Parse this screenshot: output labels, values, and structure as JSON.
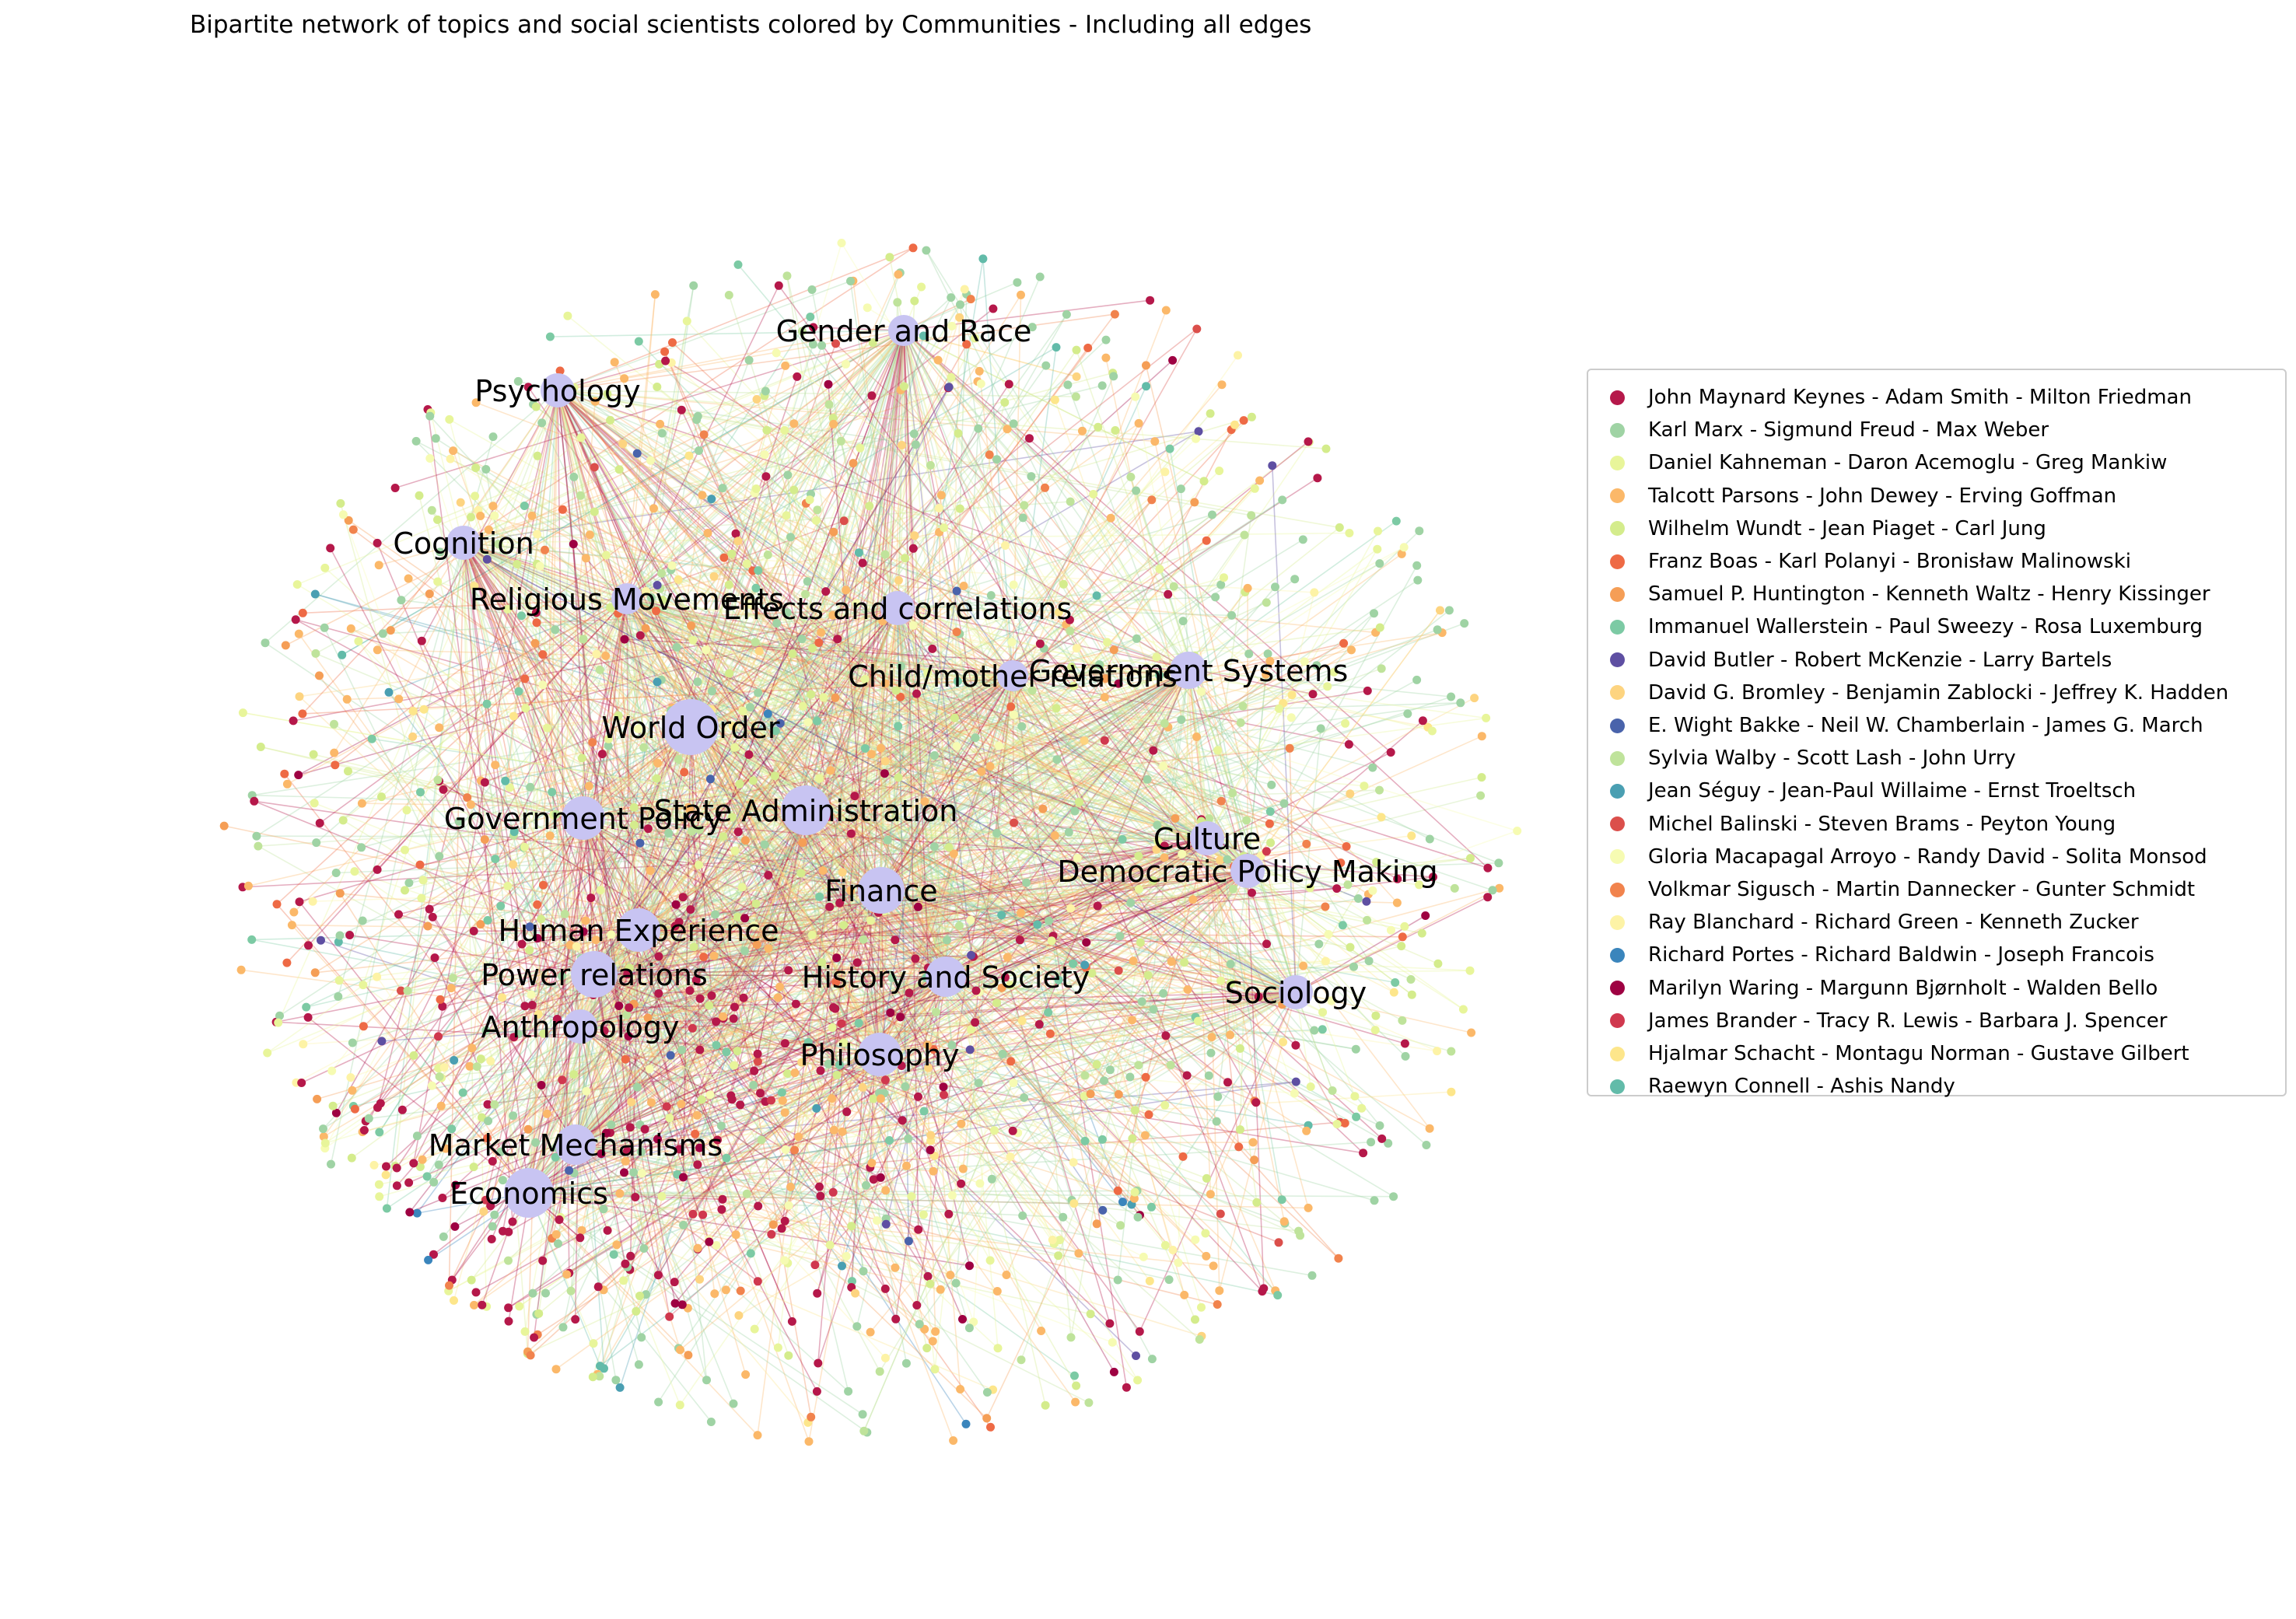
{
  "title": "Bipartite network of topics and social scientists colored by Communities - Including all edges",
  "topic_color": "#c8c4f2",
  "topics": [
    {
      "label": "Gender and Race"
    },
    {
      "label": "Psychology"
    },
    {
      "label": "Cognition"
    },
    {
      "label": "Religious Movements"
    },
    {
      "label": "Effects and correlations"
    },
    {
      "label": "Child/mother relations"
    },
    {
      "label": "Government Systems"
    },
    {
      "label": "World Order"
    },
    {
      "label": "State Administration"
    },
    {
      "label": "Government Policy"
    },
    {
      "label": "Culture"
    },
    {
      "label": "Democratic Policy Making"
    },
    {
      "label": "Finance"
    },
    {
      "label": "Human Experience"
    },
    {
      "label": "Power relations"
    },
    {
      "label": "History and Society"
    },
    {
      "label": "Sociology"
    },
    {
      "label": "Anthropology"
    },
    {
      "label": "Philosophy"
    },
    {
      "label": "Market Mechanisms"
    },
    {
      "label": "Economics"
    }
  ],
  "communities": [
    {
      "label": "John Maynard Keynes - Adam Smith - Milton Friedman",
      "color": "#b5184a"
    },
    {
      "label": "Karl Marx - Sigmund Freud - Max Weber",
      "color": "#9fd3a4"
    },
    {
      "label": "Daniel Kahneman - Daron Acemoglu - Greg Mankiw",
      "color": "#e8f59a"
    },
    {
      "label": "Talcott Parsons - John Dewey - Erving Goffman",
      "color": "#fbb869"
    },
    {
      "label": "Wilhelm Wundt - Jean Piaget - Carl Jung",
      "color": "#d4ec8c"
    },
    {
      "label": "Franz Boas - Karl Polanyi - Bronisław Malinowski",
      "color": "#ee6a45"
    },
    {
      "label": "Samuel P. Huntington - Kenneth Waltz - Henry Kissinger",
      "color": "#f59e56"
    },
    {
      "label": "Immanuel Wallerstein - Paul Sweezy - Rosa Luxemburg",
      "color": "#7ccaa4"
    },
    {
      "label": "David Butler - Robert McKenzie - Larry Bartels",
      "color": "#5e4fa2"
    },
    {
      "label": "David G. Bromley - Benjamin Zablocki - Jeffrey K. Hadden",
      "color": "#fdd480"
    },
    {
      "label": "E. Wight Bakke - Neil W. Chamberlain - James G. March",
      "color": "#4963ab"
    },
    {
      "label": "Sylvia Walby - Scott Lash - John Urry",
      "color": "#bfe39b"
    },
    {
      "label": "Jean Séguy - Jean-Paul Willaime - Ernst Troeltsch",
      "color": "#4a9fb2"
    },
    {
      "label": "Michel Balinski - Steven Brams - Peyton Young",
      "color": "#db4f4b"
    },
    {
      "label": "Gloria Macapagal Arroyo - Randy David - Solita Monsod",
      "color": "#f6fbb2"
    },
    {
      "label": "Volkmar Sigusch - Martin Dannecker - Gunter Schmidt",
      "color": "#f1834d"
    },
    {
      "label": "Ray Blanchard - Richard Green - Kenneth Zucker",
      "color": "#fdf3a6"
    },
    {
      "label": "Richard Portes - Richard Baldwin - Joseph Francois",
      "color": "#3a85bc"
    },
    {
      "label": "Marilyn Waring - Margunn Bjørnholt - Walden Bello",
      "color": "#9e0142"
    },
    {
      "label": "James Brander - Tracy R. Lewis - Barbara J. Spencer",
      "color": "#d0384e"
    },
    {
      "label": "Hjalmar Schacht - Montagu Norman - Gustave Gilbert",
      "color": "#fde68b"
    },
    {
      "label": "Raewyn Connell - Ashis Nandy",
      "color": "#62bba9"
    }
  ]
}
